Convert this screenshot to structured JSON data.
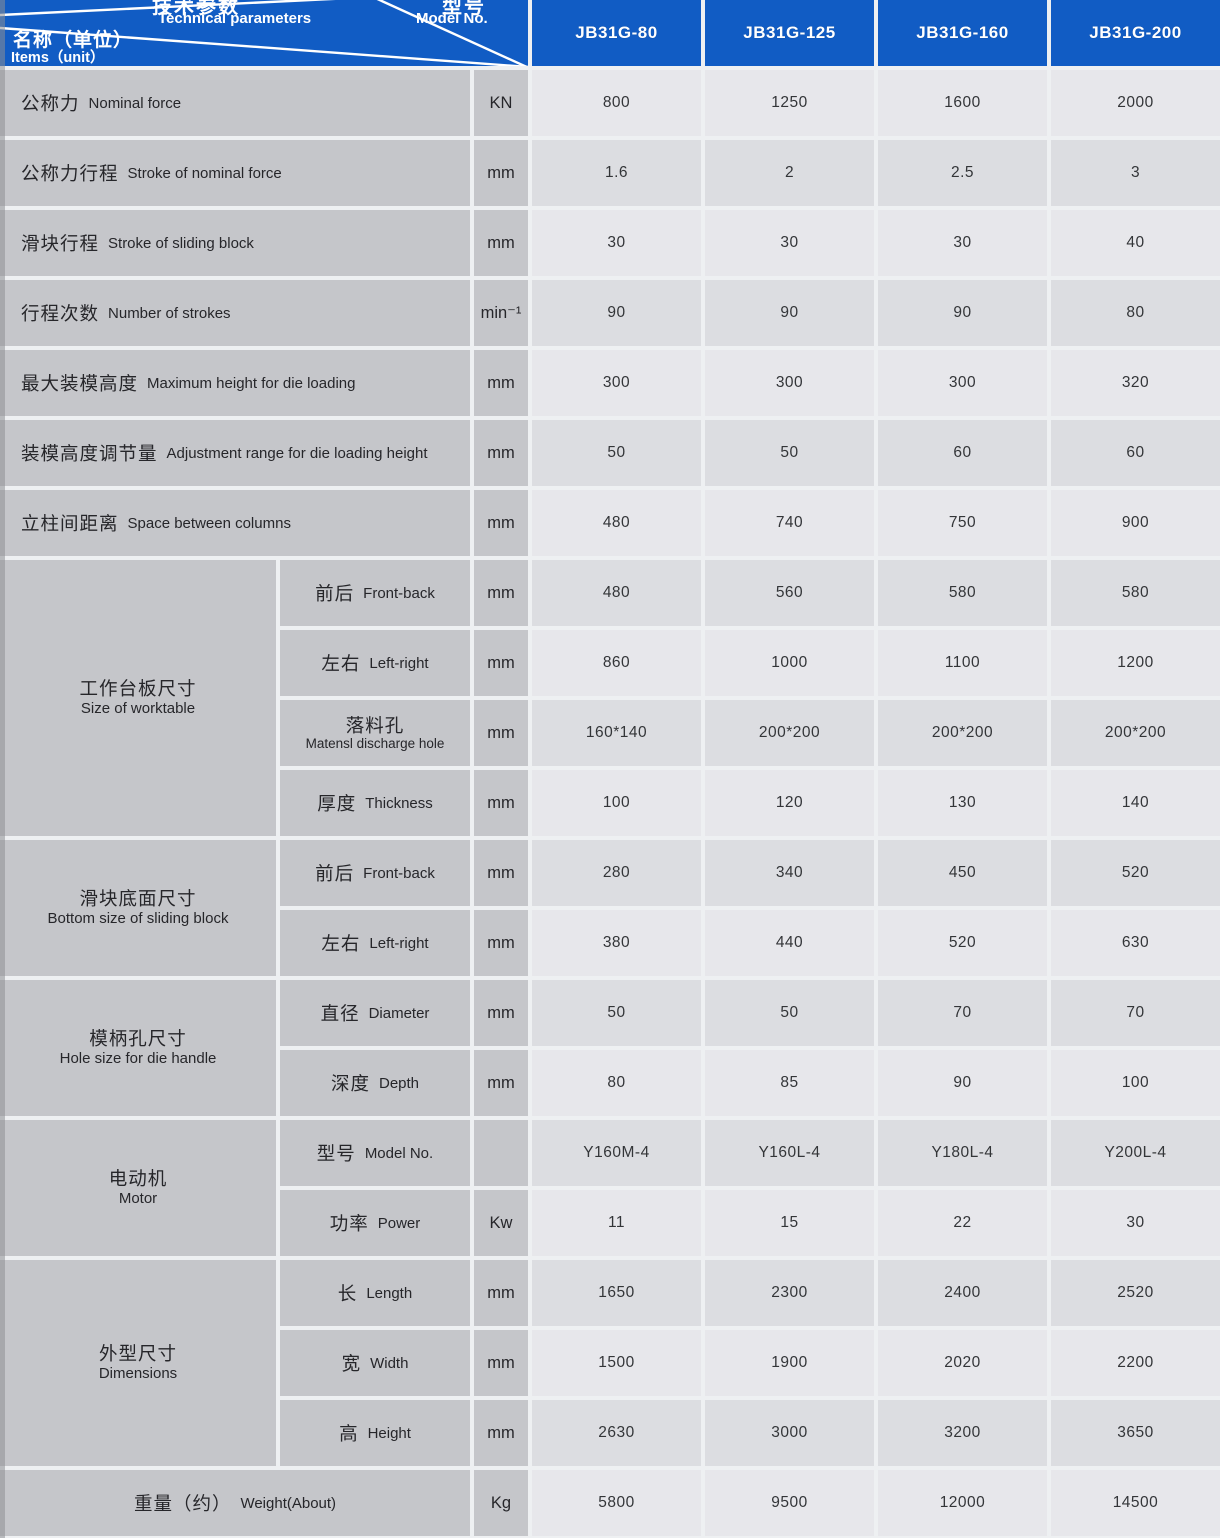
{
  "header": {
    "corner": {
      "top_zh": "技术参数",
      "top_en": "Technical parameters",
      "right_zh": "型号",
      "right_en": "Model No.",
      "left_zh": "名称（单位）",
      "left_en": "Items（unit）"
    },
    "models": [
      "JB31G-80",
      "JB31G-125",
      "JB31G-160",
      "JB31G-200"
    ]
  },
  "colors": {
    "header_blue": "#115cc4",
    "label_gray": "#c5c6ca",
    "value_light": "#e7e7eb",
    "value_dark": "#dcdde1",
    "grid_line": "#eef0f2"
  },
  "sections": [
    {
      "type": "row",
      "zh": "公称力",
      "en": "Nominal force",
      "unit": "KN",
      "values": [
        "800",
        "1250",
        "1600",
        "2000"
      ]
    },
    {
      "type": "row",
      "zh": "公称力行程",
      "en": "Stroke of nominal force",
      "unit": "mm",
      "values": [
        "1.6",
        "2",
        "2.5",
        "3"
      ]
    },
    {
      "type": "row",
      "zh": "滑块行程",
      "en": "Stroke of sliding block",
      "unit": "mm",
      "values": [
        "30",
        "30",
        "30",
        "40"
      ]
    },
    {
      "type": "row",
      "zh": "行程次数",
      "en": "Number of strokes",
      "unit": "min⁻¹",
      "values": [
        "90",
        "90",
        "90",
        "80"
      ]
    },
    {
      "type": "row",
      "zh": "最大装模高度",
      "en": "Maximum height for die loading",
      "unit": "mm",
      "values": [
        "300",
        "300",
        "300",
        "320"
      ]
    },
    {
      "type": "row",
      "zh": "装模高度调节量",
      "en": "Adjustment range for die loading height",
      "unit": "mm",
      "values": [
        "50",
        "50",
        "60",
        "60"
      ]
    },
    {
      "type": "row",
      "zh": "立柱间距离",
      "en": "Space between columns",
      "unit": "mm",
      "values": [
        "480",
        "740",
        "750",
        "900"
      ]
    },
    {
      "type": "group",
      "zh": "工作台板尺寸",
      "en": "Size of worktable",
      "rows": [
        {
          "zh": "前后",
          "en": "Front-back",
          "unit": "mm",
          "values": [
            "480",
            "560",
            "580",
            "580"
          ]
        },
        {
          "zh": "左右",
          "en": "Left-right",
          "unit": "mm",
          "values": [
            "860",
            "1000",
            "1100",
            "1200"
          ]
        },
        {
          "zh": "落料孔",
          "en": "Matensl discharge hole",
          "stacked": true,
          "unit": "mm",
          "values": [
            "160*140",
            "200*200",
            "200*200",
            "200*200"
          ]
        },
        {
          "zh": "厚度",
          "en": "Thickness",
          "unit": "mm",
          "values": [
            "100",
            "120",
            "130",
            "140"
          ]
        }
      ]
    },
    {
      "type": "group",
      "zh": "滑块底面尺寸",
      "en": "Bottom size of sliding block",
      "rows": [
        {
          "zh": "前后",
          "en": "Front-back",
          "unit": "mm",
          "values": [
            "280",
            "340",
            "450",
            "520"
          ]
        },
        {
          "zh": "左右",
          "en": "Left-right",
          "unit": "mm",
          "values": [
            "380",
            "440",
            "520",
            "630"
          ]
        }
      ]
    },
    {
      "type": "group",
      "zh": "模柄孔尺寸",
      "en": "Hole size for die handle",
      "rows": [
        {
          "zh": "直径",
          "en": "Diameter",
          "unit": "mm",
          "values": [
            "50",
            "50",
            "70",
            "70"
          ]
        },
        {
          "zh": "深度",
          "en": "Depth",
          "unit": "mm",
          "values": [
            "80",
            "85",
            "90",
            "100"
          ]
        }
      ]
    },
    {
      "type": "group",
      "zh": "电动机",
      "en": "Motor",
      "rows": [
        {
          "zh": "型号",
          "en": "Model No.",
          "unit": "",
          "values": [
            "Y160M-4",
            "Y160L-4",
            "Y180L-4",
            "Y200L-4"
          ]
        },
        {
          "zh": "功率",
          "en": "Power",
          "unit": "Kw",
          "values": [
            "11",
            "15",
            "22",
            "30"
          ]
        }
      ]
    },
    {
      "type": "group",
      "zh": "外型尺寸",
      "en": "Dimensions",
      "rows": [
        {
          "zh": "长",
          "en": "Length",
          "unit": "mm",
          "values": [
            "1650",
            "2300",
            "2400",
            "2520"
          ]
        },
        {
          "zh": "宽",
          "en": "Width",
          "unit": "mm",
          "values": [
            "1500",
            "1900",
            "2020",
            "2200"
          ]
        },
        {
          "zh": "高",
          "en": "Height",
          "unit": "mm",
          "values": [
            "2630",
            "3000",
            "3200",
            "3650"
          ]
        }
      ]
    },
    {
      "type": "row_center",
      "zh": "重量（约）",
      "en": "Weight(About)",
      "unit": "Kg",
      "values": [
        "5800",
        "9500",
        "12000",
        "14500"
      ]
    }
  ]
}
